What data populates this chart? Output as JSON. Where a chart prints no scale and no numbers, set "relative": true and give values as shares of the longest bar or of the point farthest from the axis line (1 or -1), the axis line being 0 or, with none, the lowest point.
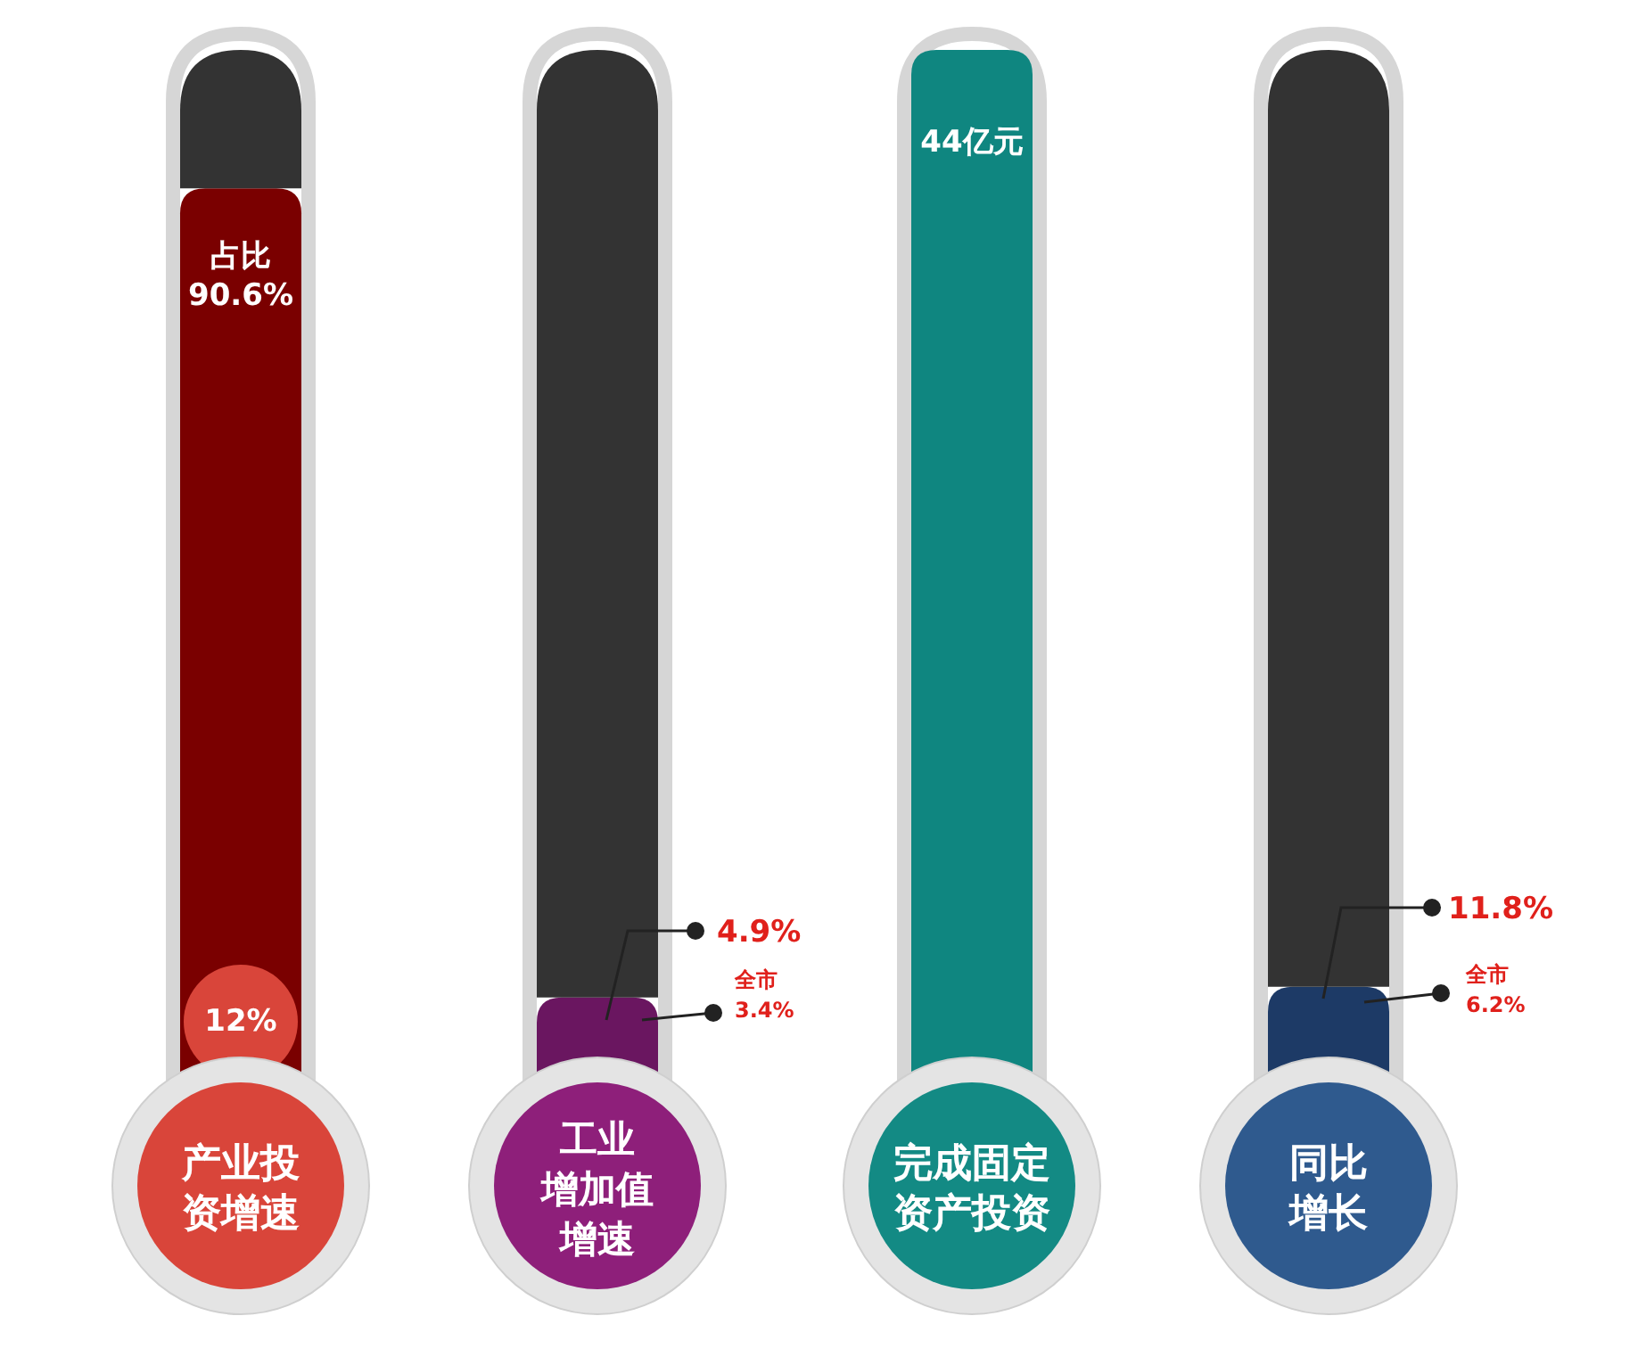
{
  "chart_data": {
    "type": "bar",
    "relative": true,
    "stacked": true,
    "categories": [
      "产业投资增速",
      "工业增加值增速",
      "完成固定资产投资",
      "同比增长"
    ],
    "series": [
      {
        "values": [
          0.87,
          0.11,
          1,
          0.12
        ],
        "colors": [
          "#7a0000",
          "#6a1660",
          "#0f8680",
          "#1d3a66"
        ]
      },
      {
        "values": [
          0.13,
          0.89,
          0,
          0.88
        ],
        "color": "#333333"
      }
    ],
    "annotations": [
      "占比\n90.6%",
      "12%",
      "4.9%",
      "全市\n3.4%",
      "44亿元",
      "11.8%",
      "全市\n6.2%"
    ]
  }
}
